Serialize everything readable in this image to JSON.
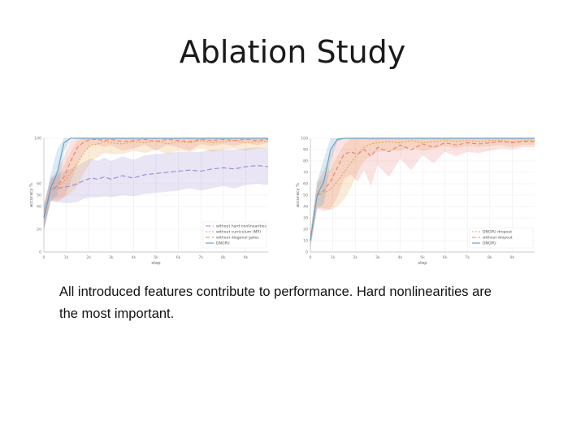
{
  "slide": {
    "title": "Ablation Study",
    "caption": "All introduced features contribute to performance. Hard nonlinearities are the most important."
  },
  "chart_data": [
    {
      "type": "line",
      "xlabel": "step",
      "ylabel": "accuracy %",
      "xlim": [
        0,
        10000
      ],
      "ylim": [
        0,
        100
      ],
      "xticks": [
        0,
        1000,
        2000,
        3000,
        4000,
        5000,
        6000,
        7000,
        8000,
        9000
      ],
      "xtick_labels": [
        "0",
        "1k",
        "2k",
        "3k",
        "4k",
        "5k",
        "6k",
        "7k",
        "8k",
        "9k"
      ],
      "yticks": [
        0,
        20,
        40,
        50,
        60,
        100
      ],
      "ytick_labels": [
        "0",
        "20",
        "40",
        "50",
        "60",
        "100"
      ],
      "grid": true,
      "legend_position": "bottom-right",
      "x": [
        0,
        300,
        600,
        900,
        1200,
        1500,
        1800,
        2100,
        2400,
        2700,
        3000,
        3500,
        4000,
        4500,
        5000,
        5500,
        6000,
        6500,
        7000,
        7500,
        8000,
        8500,
        9000,
        9500,
        10000
      ],
      "series": [
        {
          "name": "without hard nonlinearities",
          "color": "#9b8ad0",
          "dash": "6,3",
          "values": [
            30,
            55,
            56,
            57,
            58,
            60,
            63,
            65,
            64,
            66,
            64,
            67,
            65,
            68,
            69,
            70,
            71,
            72,
            71,
            73,
            74,
            73,
            75,
            76,
            75
          ],
          "band": [
            12,
            10,
            12,
            14,
            15,
            16,
            16,
            17,
            16,
            17,
            16,
            17,
            16,
            17,
            17,
            17,
            17,
            16,
            17,
            17,
            16,
            17,
            16,
            16,
            16
          ]
        },
        {
          "name": "without curriculum (MP)",
          "color": "#e8a448",
          "dash": "2,2",
          "values": [
            30,
            55,
            57,
            62,
            70,
            78,
            88,
            94,
            95,
            97,
            96,
            95,
            97,
            96,
            98,
            95,
            97,
            96,
            98,
            96,
            97,
            98,
            96,
            97,
            97
          ],
          "band": [
            10,
            8,
            10,
            14,
            18,
            20,
            18,
            14,
            12,
            10,
            10,
            9,
            8,
            9,
            8,
            9,
            8,
            8,
            7,
            8,
            7,
            7,
            7,
            6,
            6
          ]
        },
        {
          "name": "without diagonal gates",
          "color": "#e8807a",
          "dash": "5,3",
          "values": [
            30,
            55,
            58,
            66,
            80,
            92,
            97,
            99,
            99,
            98,
            99,
            97,
            98,
            99,
            97,
            99,
            98,
            97,
            99,
            98,
            99,
            98,
            99,
            98,
            99
          ],
          "band": [
            10,
            10,
            14,
            18,
            18,
            14,
            8,
            5,
            5,
            6,
            5,
            8,
            7,
            5,
            8,
            5,
            6,
            8,
            4,
            5,
            4,
            5,
            3,
            4,
            3
          ]
        },
        {
          "name": "DNGPU",
          "color": "#5a9fc8",
          "dash": "",
          "values": [
            30,
            56,
            70,
            96,
            100,
            100,
            100,
            100,
            100,
            100,
            100,
            100,
            100,
            100,
            100,
            100,
            100,
            100,
            100,
            100,
            100,
            100,
            100,
            100,
            100
          ],
          "band": [
            10,
            12,
            20,
            8,
            1,
            1,
            1,
            1,
            1,
            1,
            1,
            1,
            1,
            1,
            1,
            1,
            1,
            1,
            1,
            1,
            1,
            1,
            1,
            1,
            1
          ]
        }
      ]
    },
    {
      "type": "line",
      "xlabel": "step",
      "ylabel": "accuracy %",
      "xlim": [
        0,
        10000
      ],
      "ylim": [
        0,
        100
      ],
      "xticks": [
        0,
        1000,
        2000,
        3000,
        4000,
        5000,
        6000,
        7000,
        8000,
        9000
      ],
      "xtick_labels": [
        "0",
        "1k",
        "2k",
        "3k",
        "4k",
        "5k",
        "6k",
        "7k",
        "8k",
        "9k"
      ],
      "yticks": [
        0,
        10,
        20,
        30,
        40,
        50,
        60,
        70,
        80,
        90,
        100
      ],
      "ytick_labels": [
        "0",
        "10",
        "20",
        "30",
        "40",
        "50",
        "60",
        "70",
        "80",
        "90",
        "100"
      ],
      "grid": true,
      "legend_position": "bottom-right",
      "x": [
        0,
        300,
        600,
        900,
        1200,
        1500,
        1800,
        2100,
        2400,
        2700,
        3000,
        3500,
        4000,
        4500,
        5000,
        5500,
        6000,
        6500,
        7000,
        7500,
        8000,
        8500,
        9000,
        9500,
        10000
      ],
      "series": [
        {
          "name": "DNGPU dropout",
          "color": "#e8a448",
          "dash": "2,2",
          "values": [
            10,
            50,
            52,
            55,
            62,
            70,
            78,
            86,
            92,
            95,
            96,
            97,
            96,
            98,
            96,
            97,
            98,
            97,
            98,
            97,
            98,
            98,
            97,
            98,
            98
          ],
          "band": [
            6,
            10,
            14,
            18,
            22,
            24,
            22,
            16,
            12,
            10,
            8,
            8,
            7,
            6,
            7,
            6,
            5,
            6,
            5,
            5,
            5,
            4,
            5,
            4,
            4
          ]
        },
        {
          "name": "without dropout",
          "color": "#e8807a",
          "dash": "5,3",
          "values": [
            10,
            50,
            54,
            62,
            74,
            86,
            88,
            86,
            90,
            84,
            92,
            88,
            94,
            90,
            95,
            92,
            96,
            94,
            96,
            95,
            96,
            97,
            96,
            97,
            97
          ],
          "band": [
            6,
            12,
            18,
            24,
            26,
            22,
            20,
            24,
            18,
            26,
            16,
            22,
            12,
            18,
            10,
            14,
            8,
            10,
            8,
            8,
            7,
            6,
            6,
            5,
            5
          ]
        },
        {
          "name": "DNGPU",
          "color": "#5a9fc8",
          "dash": "",
          "values": [
            10,
            50,
            62,
            90,
            99,
            100,
            100,
            100,
            100,
            100,
            100,
            100,
            100,
            100,
            100,
            100,
            100,
            100,
            100,
            100,
            100,
            100,
            100,
            100,
            100
          ],
          "band": [
            6,
            12,
            20,
            10,
            2,
            1,
            1,
            1,
            1,
            1,
            1,
            1,
            1,
            1,
            1,
            1,
            1,
            1,
            1,
            1,
            1,
            1,
            1,
            1,
            1
          ]
        }
      ]
    }
  ]
}
